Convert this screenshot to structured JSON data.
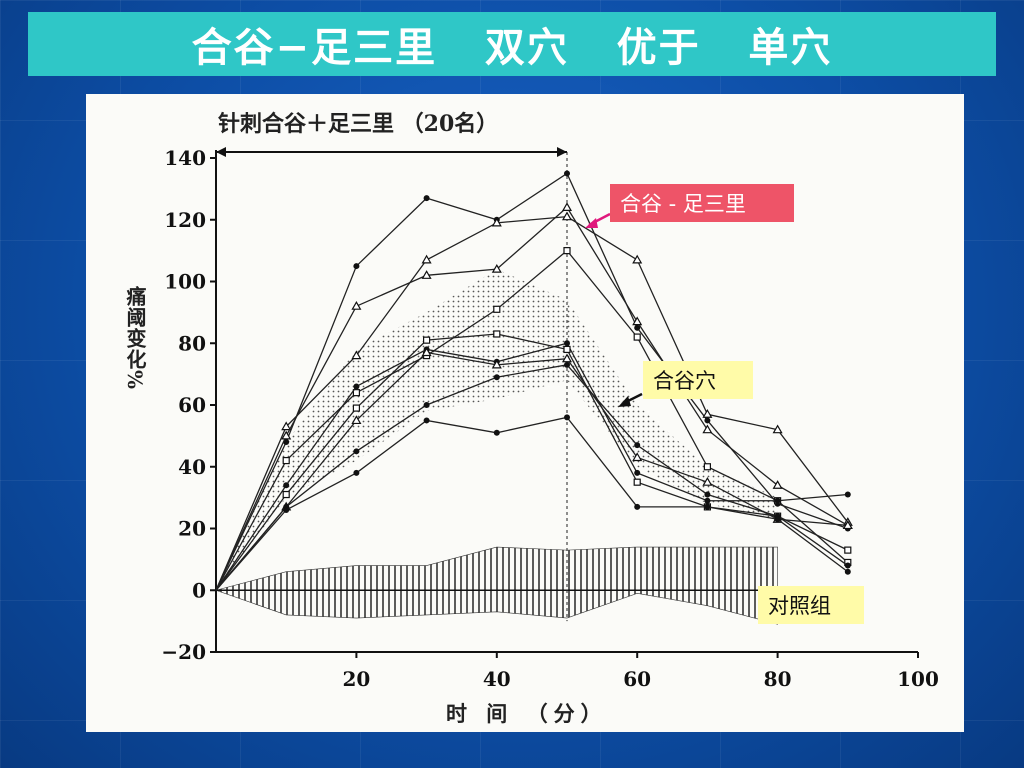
{
  "slide": {
    "title": "合谷−足三里   双穴   优于   单穴"
  },
  "chart_data": {
    "type": "line",
    "title": "针刺合谷＋足三里 （20名）",
    "ylabel": "痛阈变化%",
    "xlabel": "时 间 （分）",
    "xlim": [
      0,
      100
    ],
    "ylim": [
      -20,
      140
    ],
    "xticks": [
      20,
      40,
      60,
      80,
      100
    ],
    "yticks": [
      140,
      120,
      100,
      80,
      60,
      40,
      20,
      0,
      -20
    ],
    "stimulation_period": [
      0,
      50
    ],
    "series": [
      {
        "marker": "dot",
        "x": [
          0,
          10,
          20,
          30,
          40,
          50,
          60,
          70,
          80,
          90
        ],
        "y": [
          0,
          48,
          105,
          127,
          120,
          135,
          85,
          55,
          28,
          20
        ]
      },
      {
        "marker": "triangle",
        "x": [
          0,
          10,
          20,
          30,
          40,
          50,
          60,
          70,
          80,
          90
        ],
        "y": [
          0,
          53,
          76,
          107,
          119,
          121,
          107,
          57,
          52,
          22
        ]
      },
      {
        "marker": "triangle",
        "x": [
          0,
          10,
          20,
          30,
          40,
          50,
          60,
          70,
          80,
          90
        ],
        "y": [
          0,
          50,
          92,
          102,
          104,
          124,
          87,
          52,
          34,
          21
        ]
      },
      {
        "marker": "square",
        "x": [
          0,
          10,
          20,
          30,
          40,
          50,
          60,
          70,
          80,
          90
        ],
        "y": [
          0,
          42,
          64,
          76,
          91,
          110,
          82,
          40,
          29,
          9
        ]
      },
      {
        "marker": "dot",
        "x": [
          0,
          10,
          20,
          30,
          40,
          50,
          60,
          70,
          80,
          90
        ],
        "y": [
          0,
          34,
          66,
          78,
          74,
          80,
          38,
          29,
          29,
          31
        ]
      },
      {
        "marker": "square",
        "x": [
          0,
          10,
          20,
          30,
          40,
          50,
          60,
          70,
          80,
          90
        ],
        "y": [
          0,
          31,
          59,
          81,
          83,
          78,
          35,
          27,
          24,
          13
        ]
      },
      {
        "marker": "triangle",
        "x": [
          0,
          10,
          20,
          30,
          40,
          50,
          60,
          70,
          80,
          90
        ],
        "y": [
          0,
          27,
          55,
          77,
          73,
          75,
          43,
          35,
          23,
          21
        ]
      },
      {
        "marker": "dot",
        "x": [
          0,
          10,
          20,
          30,
          40,
          50,
          60,
          70,
          80,
          90
        ],
        "y": [
          0,
          27,
          45,
          60,
          69,
          73,
          47,
          31,
          24,
          8
        ]
      },
      {
        "marker": "dot",
        "x": [
          0,
          10,
          20,
          30,
          40,
          50,
          60,
          70,
          80,
          90
        ],
        "y": [
          0,
          26,
          38,
          55,
          51,
          56,
          27,
          27,
          23,
          6
        ]
      }
    ],
    "shaded_band": {
      "x": [
        0,
        10,
        20,
        30,
        40,
        50,
        60,
        70,
        80
      ],
      "upper": [
        0,
        48,
        78,
        90,
        104,
        94,
        60,
        40,
        30
      ],
      "lower": [
        0,
        30,
        42,
        58,
        62,
        68,
        40,
        28,
        23
      ]
    },
    "control_band": {
      "x": [
        0,
        10,
        20,
        30,
        40,
        50,
        60,
        70,
        80
      ],
      "upper": [
        0,
        6,
        8,
        8,
        14,
        13,
        14,
        14,
        14
      ],
      "lower": [
        0,
        -8,
        -9,
        -8,
        -7,
        -9,
        -1,
        -5,
        -11
      ]
    },
    "annotations": [
      {
        "label": "合谷 - 足三里",
        "arrow_color": "#e0197d",
        "color": "#ee5468"
      },
      {
        "label": "合谷穴",
        "arrow_color": "#111111",
        "color": "#fffba8"
      },
      {
        "label": "对照组",
        "color": "#fffba8"
      }
    ]
  }
}
